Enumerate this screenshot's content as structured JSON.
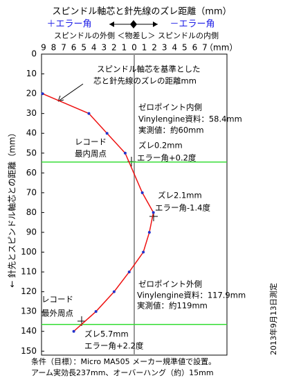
{
  "chart_data": {
    "type": "line",
    "title": "スピンドル軸芯と針先線のズレ距離（mm）",
    "plus_label": "＋エラー角",
    "minus_label": "－エラー角",
    "x_label": "スピンドルの外側 ＜物差し＞ スピンドルの内側",
    "x_unit": "（mm）",
    "y_label": "← 針先とスピンドル軸芯との距離（mm）",
    "date_note": "2013年9月13日測定",
    "xlim": [
      -9.2,
      9.2
    ],
    "xticks": [
      {
        "value": -9,
        "label": "9"
      },
      {
        "value": -8,
        "label": "8"
      },
      {
        "value": -7,
        "label": "7"
      },
      {
        "value": -6,
        "label": "6"
      },
      {
        "value": -5,
        "label": "5"
      },
      {
        "value": -4,
        "label": "4"
      },
      {
        "value": -3,
        "label": "3"
      },
      {
        "value": -2,
        "label": "2"
      },
      {
        "value": -1,
        "label": "1"
      },
      0,
      1,
      2,
      3,
      4,
      5,
      6,
      7
    ],
    "ylim": [
      0,
      152
    ],
    "yticks": [
      0,
      10,
      20,
      30,
      40,
      50,
      60,
      70,
      80,
      90,
      100,
      110,
      120,
      130,
      140,
      150
    ],
    "zero_line_color": "#999999",
    "reference_lines": [
      54.5,
      136.5
    ],
    "reference_color": "#33dd33",
    "series": [
      {
        "name": "ズレ",
        "color": "#ee1111",
        "marker_color": "#2233cc",
        "x": [
          -9.1,
          -4.5,
          -2.7,
          -0.9,
          0.8,
          1.9,
          1.5,
          0.9,
          -0.5,
          -2.0,
          -3.8,
          -6.0
        ],
        "y": [
          20,
          30,
          40,
          50,
          70,
          80,
          90,
          100,
          110,
          120,
          130,
          140
        ]
      }
    ],
    "annotations": [
      "スピンドル軸芯を基準とした",
      "芯と針先線のズレの距離mm",
      "ゼロポイント内側",
      "Vinylengine資料：58.4mm",
      "実測値：約60mm",
      "レコード",
      "最内周点",
      "ズレ0.2mm",
      "エラー角+0.2度",
      "ズレ2.1mm",
      "エラー角-1.4度",
      "ゼロポイント外側",
      "Vinylengine資料：117.9mm",
      "実測値：約119mm",
      "レコード",
      "最外周点",
      "ズレ5.7mm",
      "エラー角+2.2度"
    ],
    "footer": [
      "条件（目標）：Micro MA505 メーカー規準値で設置。",
      "アーム実効長237mm、オーバーハング（約）15mm"
    ]
  }
}
